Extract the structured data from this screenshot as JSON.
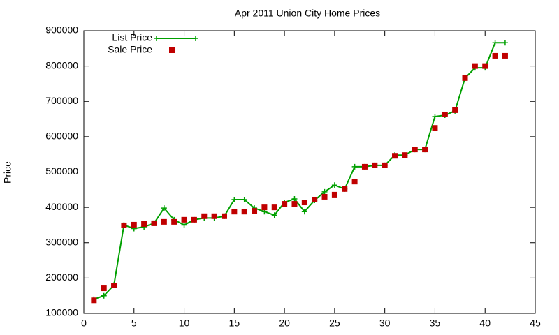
{
  "chart_data": {
    "type": "scatter",
    "title": "Apr 2011 Union City Home Prices",
    "y_label": "Price",
    "x": [
      1,
      2,
      3,
      4,
      5,
      6,
      7,
      8,
      9,
      10,
      11,
      12,
      13,
      14,
      15,
      16,
      17,
      18,
      19,
      20,
      21,
      22,
      23,
      24,
      25,
      26,
      27,
      28,
      29,
      30,
      31,
      32,
      33,
      34,
      35,
      36,
      37,
      38,
      39,
      40,
      41,
      42
    ],
    "series": [
      {
        "name": "List Price",
        "color": "#00a000",
        "line": true,
        "marker": "plus",
        "values": [
          140000,
          150000,
          180000,
          350000,
          340000,
          345000,
          355000,
          398000,
          365000,
          350000,
          365000,
          370000,
          370000,
          375000,
          422000,
          422000,
          398000,
          388000,
          378000,
          414000,
          424000,
          388000,
          420000,
          444000,
          463000,
          452000,
          515000,
          515000,
          519000,
          519000,
          548000,
          548000,
          564000,
          564000,
          657000,
          661000,
          673000,
          766000,
          795000,
          795000,
          866000,
          866000
        ]
      },
      {
        "name": "Sale Price",
        "color": "#c00000",
        "line": false,
        "marker": "square",
        "values": [
          137000,
          171000,
          179000,
          349000,
          351000,
          353000,
          355000,
          359000,
          359000,
          365000,
          365000,
          375000,
          375000,
          375000,
          388000,
          388000,
          390000,
          400000,
          400000,
          410000,
          410000,
          414000,
          422000,
          430000,
          436000,
          452000,
          473000,
          515000,
          519000,
          519000,
          546000,
          548000,
          564000,
          564000,
          625000,
          663000,
          675000,
          766000,
          800000,
          800000,
          829000,
          829000
        ]
      }
    ],
    "xlim": [
      0,
      45
    ],
    "xticks": [
      0,
      5,
      10,
      15,
      20,
      25,
      30,
      35,
      40,
      45
    ],
    "ylim": [
      100000,
      900000
    ],
    "yticks": [
      100000,
      200000,
      300000,
      400000,
      500000,
      600000,
      700000,
      800000,
      900000
    ],
    "grid": false,
    "legend": "top-left"
  }
}
